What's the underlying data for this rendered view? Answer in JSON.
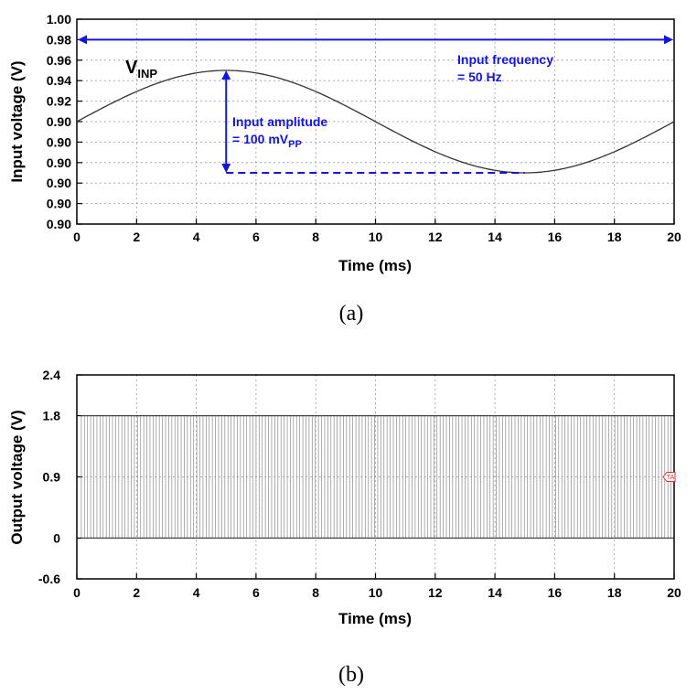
{
  "chart_data": [
    {
      "type": "line",
      "panel_label": "(a)",
      "xlabel": "Time (ms)",
      "ylabel": "Input voltage (V)",
      "xlim": [
        0,
        20
      ],
      "ylim": [
        0.8,
        1.0
      ],
      "x_ticks": [
        "0",
        "2",
        "4",
        "6",
        "8",
        "10",
        "12",
        "14",
        "16",
        "18",
        "20"
      ],
      "y_ticks": [
        "1.00",
        "0.98",
        "0.96",
        "0.94",
        "0.92",
        "0.90",
        "0.90",
        "0.90",
        "0.90",
        "0.90",
        "0.90"
      ],
      "grid": true,
      "series": [
        {
          "name": "V",
          "name_sub": "INP",
          "color": "#333333",
          "x": [
            0,
            1,
            2,
            3,
            4,
            5,
            6,
            7,
            8,
            9,
            10,
            11,
            12,
            13,
            14,
            15,
            16,
            17,
            18,
            19,
            20
          ],
          "y": [
            0.9,
            0.9155,
            0.9294,
            0.9405,
            0.9476,
            0.95,
            0.9476,
            0.9405,
            0.9294,
            0.9155,
            0.9,
            0.8845,
            0.8706,
            0.8595,
            0.8524,
            0.85,
            0.8524,
            0.8595,
            0.8706,
            0.8845,
            0.9
          ]
        }
      ],
      "annotations": {
        "frequency_line1": "Input frequency",
        "frequency_line2": "= 50 Hz",
        "amplitude_line1": "Input amplitude",
        "amplitude_line2_prefix": "= 100 mV",
        "amplitude_line2_sub": "PP",
        "frequency_arrow_y": 0.98,
        "amplitude_arrow_x": 5,
        "amplitude_arrow_top": 0.95,
        "amplitude_arrow_bottom": 0.85,
        "dashed_line_x_end": 15,
        "color": "#1515d6"
      }
    },
    {
      "type": "line",
      "panel_label": "(b)",
      "xlabel": "Time (ms)",
      "ylabel": "Output voltage (V)",
      "xlim": [
        0,
        20
      ],
      "ylim": [
        -0.6,
        2.4
      ],
      "x_ticks": [
        "0",
        "2",
        "4",
        "6",
        "8",
        "10",
        "12",
        "14",
        "16",
        "18",
        "20"
      ],
      "y_tick_values": [
        2.4,
        1.8,
        0.9,
        0,
        -0.6
      ],
      "y_ticks": [
        "2.4",
        "1.8",
        "0.9",
        "0",
        "-0.6"
      ],
      "grid": true,
      "series": [
        {
          "name": "",
          "description": "pulse train switching between 0 V and 1.8 V over 0–20 ms",
          "color": "#555555",
          "high": 1.8,
          "low": 0,
          "x_start": 0.15,
          "x_end": 20,
          "pulse_count": 190
        }
      ],
      "marker_label": "TA",
      "marker_value": 0.9
    }
  ]
}
